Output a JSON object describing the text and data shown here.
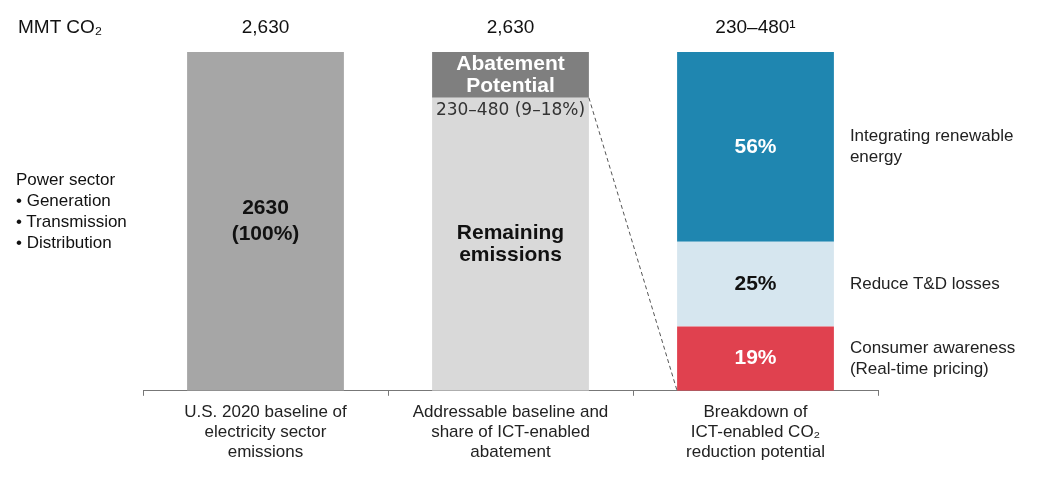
{
  "chart_data": {
    "type": "bar",
    "stacked": true,
    "tick_labels": "x",
    "ylim": [
      0,
      2630
    ],
    "y2lim": [
      0,
      100
    ],
    "categories": [
      "U.S. 2020 baseline of electricity sector emissions",
      "Addressable baseline and share of ICT-enabled abatement",
      "Breakdown of ICT-enabled CO₂ reduction potential"
    ],
    "series": [
      {
        "color": "#a6a6a6",
        "values": [
          2630,
          null,
          null
        ],
        "value_labels": [
          "2630\n(100%)",
          null,
          null
        ]
      },
      {
        "name": "Remaining emissions",
        "color": "#d9d9d9",
        "values": [
          null,
          2275,
          null
        ]
      },
      {
        "name": "Abatement Potential",
        "color": "#7f7f7f",
        "values": [
          null,
          355,
          null
        ]
      },
      {
        "name": "Consumer awareness (Real-time pricing)",
        "color": "#e0414f",
        "axis": "y2",
        "values": [
          null,
          null,
          19
        ],
        "value_labels": [
          null,
          null,
          "19%"
        ]
      },
      {
        "name": "Reduce T&D losses",
        "color": "#d6e6ef",
        "axis": "y2",
        "values": [
          null,
          null,
          25
        ],
        "value_labels": [
          null,
          null,
          "25%"
        ]
      },
      {
        "name": "Integrating renewable energy",
        "color": "#1f86b0",
        "axis": "y2",
        "values": [
          null,
          null,
          56
        ],
        "value_labels": [
          null,
          null,
          "56%"
        ]
      }
    ],
    "totals": [
      "2,630",
      "2,630",
      "230–480¹"
    ],
    "annotations": [
      "MMT CO₂",
      "Power sector\n• Generation\n• Transmission\n• Distribution",
      {
        "text": "230–480 (9–18%)",
        "x": "Addressable baseline and share of ICT-enabled abatement",
        "y": 2275
      }
    ]
  }
}
